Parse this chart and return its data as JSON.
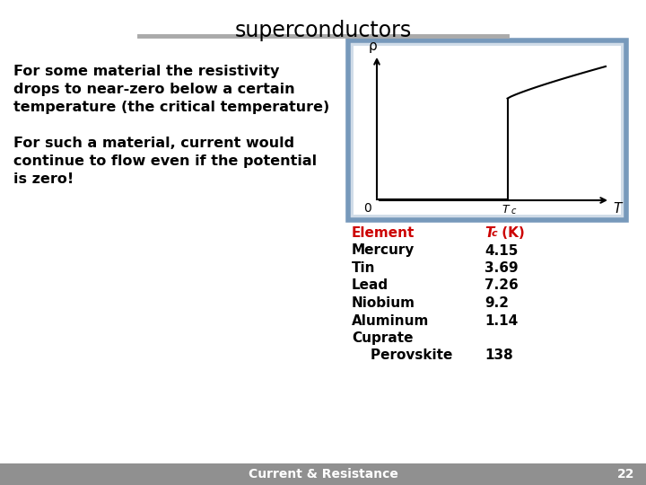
{
  "title": "superconductors",
  "bg_color": "#ffffff",
  "footer_bg": "#909090",
  "footer_text": "Current & Resistance",
  "footer_number": "22",
  "para1_line1": "For some material the resistivity",
  "para1_line2": "drops to near-zero below a certain",
  "para1_line3": "temperature (the critical temperature)",
  "para2_line1": "For such a material, current would",
  "para2_line2": "continue to flow even if the potential",
  "para2_line3": "is zero!",
  "table_header_element": "Element",
  "table_header_tc": "T",
  "table_header_tc_sub": "c",
  "table_header_tc_unit": " (K)",
  "table_rows": [
    [
      "Mercury",
      "4.15"
    ],
    [
      "Tin",
      "3.69"
    ],
    [
      "Lead",
      "7.26"
    ],
    [
      "Niobium",
      "9.2"
    ],
    [
      "Aluminum",
      "1.14"
    ],
    [
      "Cuprate",
      ""
    ],
    [
      "    Perovskite",
      "138"
    ]
  ],
  "header_color": "#cc0000",
  "text_color": "#000000",
  "graph_border_color": "#7799bb",
  "graph_border_inner": "#d0dce8"
}
